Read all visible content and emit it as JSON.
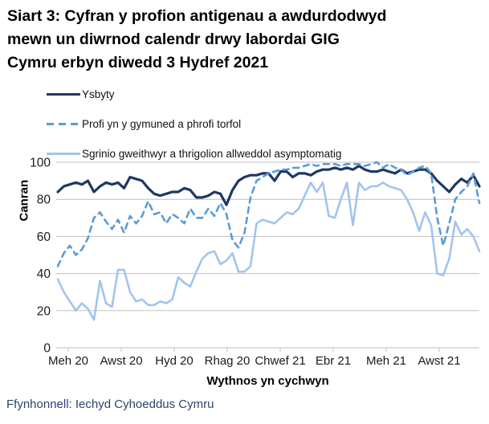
{
  "title": {
    "line1": "Siart 3: Cyfran y profion antigenau a awdurdodwyd",
    "line2": "mewn un diwrnod calendr drwy labordai GIG",
    "line3": "Cymru erbyn diwedd 3 Hydref 2021"
  },
  "legend": {
    "items": [
      {
        "label": "Ysbyty",
        "color": "#1F3864",
        "style": "solid"
      },
      {
        "label": "Profi yn y gymuned a phrofi torfol",
        "color": "#5B9BD5",
        "style": "dashed"
      },
      {
        "label": "Sgrinio gweithwyr a thrigolion allweddol asymptomatig",
        "color": "#A2C4EC",
        "style": "solid"
      }
    ]
  },
  "source": {
    "text": "Ffynhonnell: Iechyd Cyhoeddus Cymru"
  },
  "colors": {
    "navy": "#1F3864",
    "mid_blue": "#5B9BD5",
    "light_blue": "#A2C4EC",
    "grid": "#BFBFBF",
    "tick_text": "#1a1a1a"
  },
  "chart_data": {
    "type": "line",
    "title": "Siart 3: Cyfran y profion antigenau a awdurdodwyd mewn un diwrnod calendr drwy labordai GIG Cymru erbyn diwedd 3 Hydref 2021",
    "xlabel": "Wythnos yn cychwyn",
    "ylabel": "Canran",
    "ylim": [
      0,
      100
    ],
    "y_ticks": [
      0,
      20,
      40,
      60,
      80,
      100
    ],
    "x_tick_labels": [
      "Meh 20",
      "Awst 20",
      "Hyd 20",
      "Rhag 20",
      "Chwef 21",
      "Ebr 21",
      "Meh 21",
      "Awst 21"
    ],
    "x_unit": "weekly points from Meh 2020 to early Hyd 2021",
    "grid": true,
    "legend_position": "top-left",
    "series": [
      {
        "name": "Ysbyty",
        "color": "#1F3864",
        "dash": "solid",
        "values": [
          84,
          87,
          88,
          89,
          88,
          90,
          84,
          87,
          89,
          88,
          89,
          86,
          92,
          91,
          90,
          86,
          83,
          82,
          83,
          84,
          84,
          86,
          85,
          81,
          81,
          82,
          84,
          83,
          77,
          85,
          90,
          92,
          93,
          93,
          94,
          94,
          90,
          95,
          95,
          92,
          94,
          94,
          93,
          95,
          96,
          96,
          97,
          96,
          97,
          96,
          98,
          96,
          95,
          95,
          96,
          95,
          94,
          96,
          94,
          95,
          96,
          96,
          94,
          90,
          87,
          84,
          88,
          91,
          89,
          93,
          87
        ]
      },
      {
        "name": "Profi yn y gymuned a phrofi torfol",
        "color": "#5B9BD5",
        "dash": "dashed",
        "values": [
          44,
          51,
          55,
          50,
          53,
          59,
          70,
          73,
          68,
          64,
          69,
          62,
          71,
          67,
          71,
          79,
          72,
          73,
          67,
          72,
          70,
          67,
          75,
          70,
          70,
          75,
          71,
          78,
          72,
          58,
          54,
          62,
          81,
          90,
          92,
          94,
          95,
          96,
          96,
          97,
          97,
          98,
          99,
          98,
          99,
          99,
          99,
          98,
          99,
          99,
          99,
          98,
          99,
          100,
          97,
          99,
          97,
          96,
          93,
          95,
          97,
          98,
          94,
          70,
          55,
          67,
          80,
          84,
          87,
          94,
          78
        ]
      },
      {
        "name": "Sgrinio gweithwyr a thrigolion allweddol asymptomatig",
        "color": "#A2C4EC",
        "dash": "solid",
        "values": [
          37,
          30,
          25,
          20,
          24,
          21,
          15,
          36,
          24,
          22,
          42,
          42,
          30,
          25,
          26,
          23,
          23,
          25,
          24,
          26,
          38,
          35,
          33,
          41,
          48,
          51,
          52,
          45,
          47,
          51,
          41,
          41,
          44,
          67,
          69,
          68,
          67,
          70,
          73,
          72,
          75,
          82,
          89,
          84,
          89,
          71,
          70,
          80,
          89,
          66,
          89,
          85,
          87,
          87,
          89,
          87,
          86,
          85,
          80,
          73,
          63,
          73,
          66,
          40,
          39,
          48,
          68,
          61,
          64,
          60,
          52
        ]
      }
    ]
  }
}
